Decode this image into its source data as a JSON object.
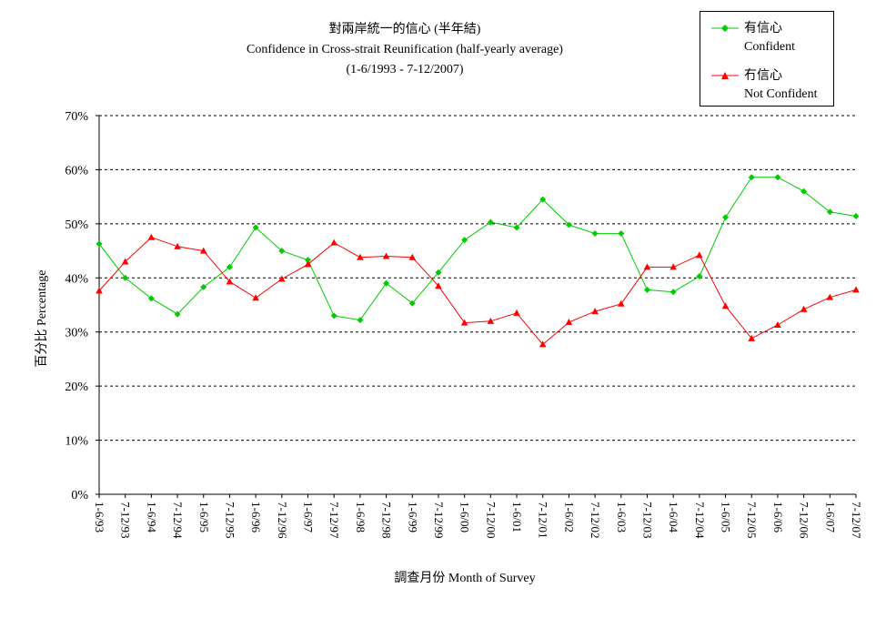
{
  "chart_data": {
    "type": "line",
    "title": "對兩岸統一的信心 (半年結)",
    "subtitle": "Confidence in Cross-strait Reunification (half-yearly average)",
    "period": "(1-6/1993 - 7-12/2007)",
    "xlabel": "調查月份 Month of Survey",
    "ylabel": "百分比 Percentage",
    "ylim": [
      0,
      70
    ],
    "yticks": [
      "0%",
      "10%",
      "20%",
      "30%",
      "40%",
      "50%",
      "60%",
      "70%"
    ],
    "grid": true,
    "legend_position": "top-right",
    "categories": [
      "1-6/93",
      "7-12/93",
      "1-6/94",
      "7-12/94",
      "1-6/95",
      "7-12/95",
      "1-6/96",
      "7-12/96",
      "1-6/97",
      "7-12/97",
      "1-6/98",
      "7-12/98",
      "1-6/99",
      "7-12/99",
      "1-6/00",
      "7-12/00",
      "1-6/01",
      "7-12/01",
      "1-6/02",
      "7-12/02",
      "1-6/03",
      "7-12/03",
      "1-6/04",
      "7-12/04",
      "1-6/05",
      "7-12/05",
      "1-6/06",
      "7-12/06",
      "1-6/07",
      "7-12/07"
    ],
    "series": [
      {
        "name": "有信心",
        "name_en": "Confident",
        "color": "#00cc00",
        "marker": "diamond",
        "values": [
          46.3,
          40.0,
          36.2,
          33.3,
          38.3,
          42.0,
          49.3,
          45.0,
          43.3,
          33.0,
          32.2,
          39.0,
          35.3,
          41.0,
          47.0,
          50.3,
          49.3,
          54.5,
          49.8,
          48.2,
          48.2,
          37.8,
          37.4,
          40.3,
          51.2,
          58.6,
          58.6,
          56.0,
          52.2,
          51.4
        ]
      },
      {
        "name": "冇信心",
        "name_en": "Not Confident",
        "color": "#ff0000",
        "marker": "triangle",
        "values": [
          37.6,
          43.0,
          47.5,
          45.8,
          45.0,
          39.3,
          36.3,
          39.8,
          42.5,
          46.5,
          43.8,
          44.0,
          43.8,
          38.5,
          31.7,
          32.0,
          33.5,
          27.7,
          31.8,
          33.8,
          35.2,
          42.0,
          42.0,
          44.2,
          34.8,
          28.8,
          31.3,
          34.2,
          36.4,
          37.8
        ]
      }
    ]
  }
}
